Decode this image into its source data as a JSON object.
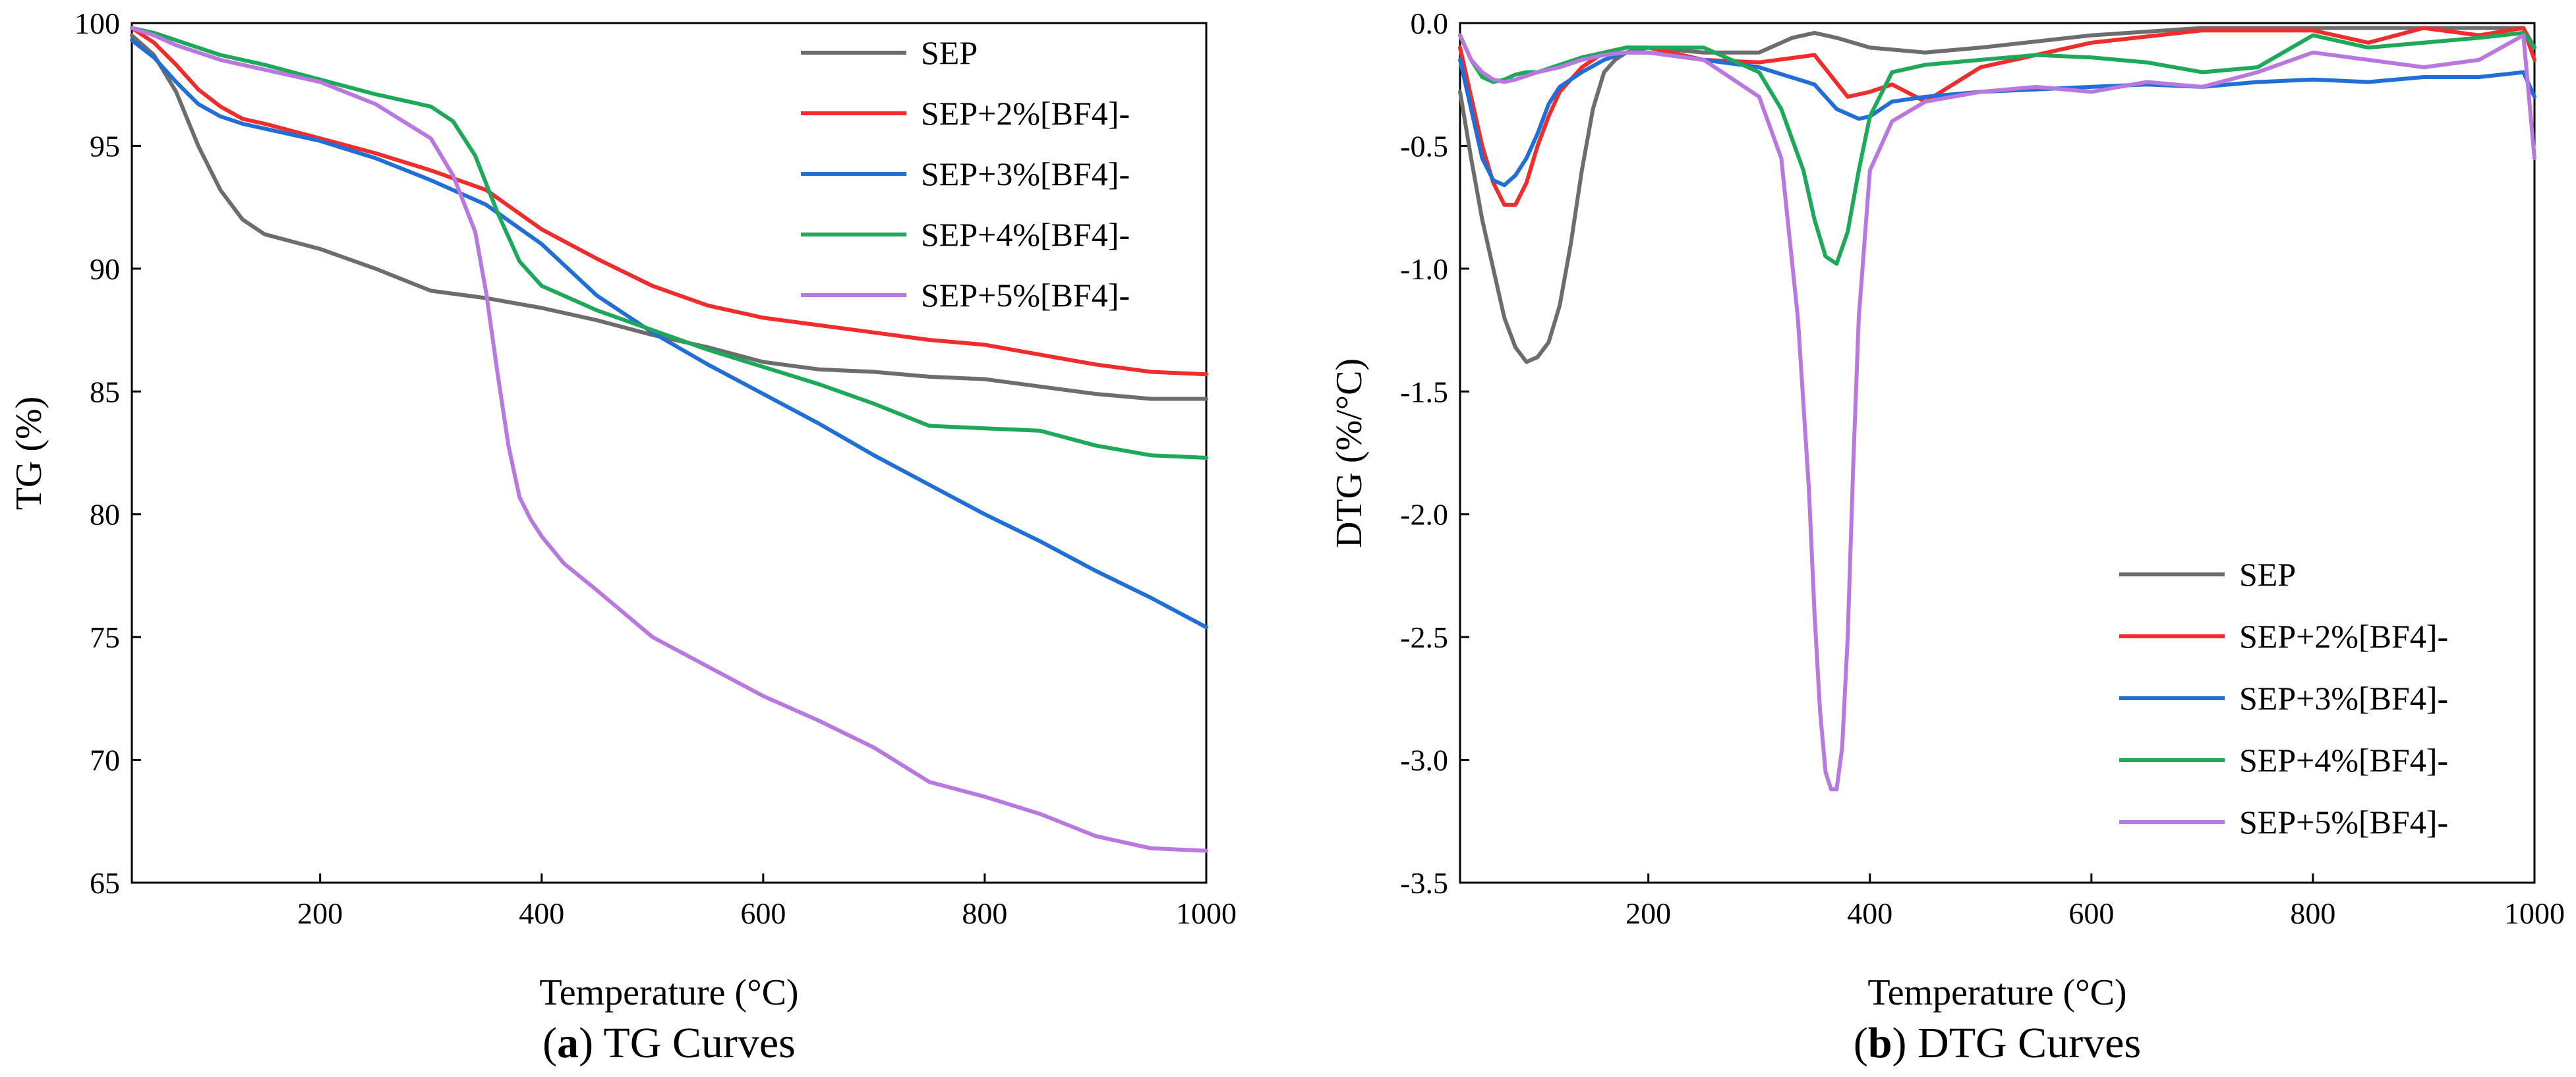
{
  "chart_data": [
    {
      "type": "line",
      "caption_letter": "a",
      "caption_text": "TG Curves",
      "title": "",
      "xlabel": "Temperature (°C)",
      "ylabel": "TG (%)",
      "xlim": [
        30,
        1000
      ],
      "ylim": [
        65,
        100
      ],
      "xticks": [
        "200",
        "400",
        "600",
        "800",
        "1000"
      ],
      "xtick_values": [
        200,
        400,
        600,
        800,
        1000
      ],
      "yticks": [
        "65",
        "70",
        "75",
        "80",
        "85",
        "90",
        "95",
        "100"
      ],
      "ytick_values": [
        65,
        70,
        75,
        80,
        85,
        90,
        95,
        100
      ],
      "legend_position": "top-right",
      "series": [
        {
          "name": "SEP",
          "color": "#6d6d6d",
          "x": [
            30,
            50,
            70,
            90,
            110,
            130,
            150,
            200,
            250,
            300,
            350,
            400,
            450,
            500,
            550,
            600,
            650,
            700,
            750,
            800,
            850,
            900,
            950,
            1000
          ],
          "y": [
            99.5,
            98.7,
            97.2,
            95.0,
            93.2,
            92.0,
            91.4,
            90.8,
            90.0,
            89.1,
            88.8,
            88.4,
            87.9,
            87.3,
            86.8,
            86.2,
            85.9,
            85.8,
            85.6,
            85.5,
            85.2,
            84.9,
            84.7,
            84.7
          ]
        },
        {
          "name": "SEP+2%[BF4]-",
          "color": "#f02c2c",
          "x": [
            30,
            50,
            70,
            90,
            110,
            130,
            150,
            200,
            250,
            300,
            350,
            400,
            450,
            500,
            550,
            600,
            650,
            700,
            750,
            800,
            850,
            900,
            950,
            1000
          ],
          "y": [
            99.8,
            99.2,
            98.3,
            97.3,
            96.6,
            96.1,
            95.9,
            95.3,
            94.7,
            94.0,
            93.2,
            91.6,
            90.4,
            89.3,
            88.5,
            88.0,
            87.7,
            87.4,
            87.1,
            86.9,
            86.5,
            86.1,
            85.8,
            85.7
          ]
        },
        {
          "name": "SEP+3%[BF4]-",
          "color": "#1f6fd6",
          "x": [
            30,
            50,
            70,
            90,
            110,
            130,
            150,
            200,
            250,
            300,
            350,
            400,
            450,
            500,
            550,
            600,
            650,
            700,
            750,
            800,
            850,
            900,
            950,
            1000
          ],
          "y": [
            99.3,
            98.6,
            97.6,
            96.7,
            96.2,
            95.9,
            95.7,
            95.2,
            94.5,
            93.6,
            92.6,
            91.0,
            88.9,
            87.4,
            86.1,
            84.9,
            83.7,
            82.4,
            81.2,
            80.0,
            78.9,
            77.7,
            76.6,
            75.4
          ]
        },
        {
          "name": "SEP+4%[BF4]-",
          "color": "#1ea95a",
          "x": [
            30,
            50,
            70,
            90,
            110,
            130,
            150,
            200,
            250,
            300,
            320,
            340,
            360,
            380,
            400,
            450,
            500,
            550,
            600,
            650,
            700,
            750,
            800,
            850,
            900,
            950,
            1000
          ],
          "y": [
            99.8,
            99.6,
            99.3,
            99.0,
            98.7,
            98.5,
            98.3,
            97.7,
            97.1,
            96.6,
            96.0,
            94.6,
            92.3,
            90.3,
            89.3,
            88.3,
            87.5,
            86.7,
            86.0,
            85.3,
            84.5,
            83.6,
            83.5,
            83.4,
            82.8,
            82.4,
            82.3
          ]
        },
        {
          "name": "SEP+5%[BF4]-",
          "color": "#b978e0",
          "x": [
            30,
            50,
            70,
            90,
            110,
            130,
            150,
            200,
            250,
            300,
            320,
            340,
            350,
            360,
            370,
            380,
            390,
            400,
            420,
            450,
            500,
            550,
            600,
            650,
            700,
            750,
            800,
            850,
            900,
            950,
            1000
          ],
          "y": [
            99.8,
            99.5,
            99.1,
            98.8,
            98.5,
            98.3,
            98.1,
            97.6,
            96.7,
            95.3,
            93.8,
            91.5,
            89.0,
            85.8,
            82.8,
            80.7,
            79.8,
            79.1,
            78.0,
            76.9,
            75.0,
            73.8,
            72.6,
            71.6,
            70.5,
            69.1,
            68.5,
            67.8,
            66.9,
            66.4,
            66.3
          ]
        }
      ]
    },
    {
      "type": "line",
      "caption_letter": "b",
      "caption_text": "DTG Curves",
      "title": "",
      "xlabel": "Temperature (°C)",
      "ylabel": "DTG (%/°C)",
      "xlim": [
        30,
        1000
      ],
      "ylim": [
        -3.5,
        0.0
      ],
      "xticks": [
        "200",
        "400",
        "600",
        "800",
        "1000"
      ],
      "xtick_values": [
        200,
        400,
        600,
        800,
        1000
      ],
      "yticks": [
        "-3.5",
        "-3.0",
        "-2.5",
        "-2.0",
        "-1.5",
        "-1.0",
        "-0.5",
        "0.0"
      ],
      "ytick_values": [
        -3.5,
        -3.0,
        -2.5,
        -2.0,
        -1.5,
        -1.0,
        -0.5,
        0.0
      ],
      "legend_position": "bottom-right",
      "series": [
        {
          "name": "SEP",
          "color": "#6d6d6d",
          "x": [
            30,
            40,
            50,
            60,
            70,
            80,
            90,
            100,
            110,
            120,
            130,
            140,
            150,
            160,
            170,
            180,
            200,
            250,
            300,
            330,
            350,
            370,
            400,
            450,
            500,
            600,
            700,
            800,
            900,
            990,
            1000
          ],
          "y": [
            -0.28,
            -0.55,
            -0.8,
            -1.0,
            -1.2,
            -1.32,
            -1.38,
            -1.36,
            -1.3,
            -1.15,
            -0.9,
            -0.6,
            -0.35,
            -0.2,
            -0.15,
            -0.12,
            -0.1,
            -0.12,
            -0.12,
            -0.06,
            -0.04,
            -0.06,
            -0.1,
            -0.12,
            -0.1,
            -0.05,
            -0.02,
            -0.02,
            -0.02,
            -0.02,
            -0.1
          ]
        },
        {
          "name": "SEP+2%[BF4]-",
          "color": "#f02c2c",
          "x": [
            30,
            40,
            50,
            60,
            70,
            80,
            90,
            100,
            110,
            120,
            140,
            160,
            180,
            200,
            250,
            300,
            350,
            380,
            400,
            420,
            450,
            500,
            600,
            700,
            800,
            850,
            900,
            950,
            990,
            1000
          ],
          "y": [
            -0.1,
            -0.3,
            -0.5,
            -0.65,
            -0.74,
            -0.74,
            -0.65,
            -0.5,
            -0.38,
            -0.28,
            -0.18,
            -0.12,
            -0.1,
            -0.1,
            -0.15,
            -0.16,
            -0.13,
            -0.3,
            -0.28,
            -0.25,
            -0.32,
            -0.18,
            -0.08,
            -0.03,
            -0.03,
            -0.08,
            -0.02,
            -0.05,
            -0.02,
            -0.15
          ]
        },
        {
          "name": "SEP+3%[BF4]-",
          "color": "#1f6fd6",
          "x": [
            30,
            40,
            50,
            60,
            70,
            80,
            90,
            100,
            110,
            120,
            140,
            160,
            180,
            200,
            250,
            300,
            350,
            370,
            390,
            400,
            420,
            450,
            500,
            550,
            600,
            650,
            700,
            750,
            800,
            850,
            900,
            950,
            990,
            1000
          ],
          "y": [
            -0.15,
            -0.35,
            -0.55,
            -0.64,
            -0.66,
            -0.62,
            -0.55,
            -0.45,
            -0.33,
            -0.26,
            -0.2,
            -0.15,
            -0.12,
            -0.12,
            -0.15,
            -0.18,
            -0.25,
            -0.35,
            -0.39,
            -0.38,
            -0.32,
            -0.3,
            -0.28,
            -0.27,
            -0.26,
            -0.25,
            -0.26,
            -0.24,
            -0.23,
            -0.24,
            -0.22,
            -0.22,
            -0.2,
            -0.3
          ]
        },
        {
          "name": "SEP+4%[BF4]-",
          "color": "#1ea95a",
          "x": [
            30,
            40,
            50,
            60,
            70,
            80,
            90,
            100,
            120,
            140,
            160,
            180,
            200,
            250,
            300,
            320,
            340,
            350,
            360,
            370,
            380,
            390,
            400,
            420,
            450,
            500,
            550,
            600,
            650,
            700,
            750,
            800,
            850,
            900,
            950,
            990,
            1000
          ],
          "y": [
            -0.05,
            -0.15,
            -0.22,
            -0.24,
            -0.23,
            -0.21,
            -0.2,
            -0.2,
            -0.17,
            -0.14,
            -0.12,
            -0.1,
            -0.1,
            -0.1,
            -0.2,
            -0.35,
            -0.6,
            -0.8,
            -0.95,
            -0.98,
            -0.85,
            -0.6,
            -0.38,
            -0.2,
            -0.17,
            -0.15,
            -0.13,
            -0.14,
            -0.16,
            -0.2,
            -0.18,
            -0.05,
            -0.1,
            -0.08,
            -0.06,
            -0.04,
            -0.1
          ]
        },
        {
          "name": "SEP+5%[BF4]-",
          "color": "#b978e0",
          "x": [
            30,
            40,
            50,
            60,
            70,
            80,
            100,
            120,
            140,
            160,
            180,
            200,
            250,
            300,
            320,
            335,
            345,
            350,
            355,
            360,
            365,
            370,
            375,
            380,
            385,
            390,
            400,
            420,
            450,
            500,
            550,
            600,
            650,
            700,
            750,
            800,
            850,
            900,
            950,
            990,
            1000
          ],
          "y": [
            -0.05,
            -0.15,
            -0.2,
            -0.23,
            -0.24,
            -0.23,
            -0.2,
            -0.18,
            -0.15,
            -0.13,
            -0.12,
            -0.12,
            -0.15,
            -0.3,
            -0.55,
            -1.2,
            -1.9,
            -2.4,
            -2.8,
            -3.05,
            -3.12,
            -3.12,
            -2.95,
            -2.5,
            -1.8,
            -1.2,
            -0.6,
            -0.4,
            -0.32,
            -0.28,
            -0.26,
            -0.28,
            -0.24,
            -0.26,
            -0.2,
            -0.12,
            -0.15,
            -0.18,
            -0.15,
            -0.05,
            -0.55
          ]
        }
      ]
    }
  ]
}
